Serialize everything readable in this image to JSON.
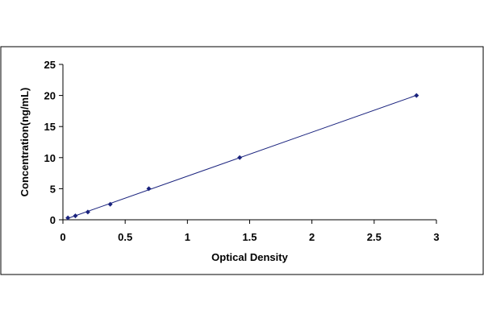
{
  "chart_data": {
    "type": "scatter",
    "xlabel": "Optical Density",
    "ylabel": "Concentration(ng/mL)",
    "xlim": [
      0,
      3
    ],
    "ylim": [
      0,
      25
    ],
    "x_ticks": [
      0,
      0.5,
      1,
      1.5,
      2,
      2.5,
      3
    ],
    "x_tick_labels": [
      "0",
      "0.5",
      "1",
      "1.5",
      "2",
      "2.5",
      "3"
    ],
    "y_ticks": [
      0,
      5,
      10,
      15,
      20,
      25
    ],
    "y_tick_labels": [
      "0",
      "5",
      "10",
      "15",
      "20",
      "25"
    ],
    "grid": false,
    "legend": "none",
    "series": [
      {
        "x": [
          0.04,
          0.1,
          0.2,
          0.38,
          0.69,
          1.42,
          2.84
        ],
        "y": [
          0.313,
          0.625,
          1.25,
          2.5,
          5,
          10,
          20
        ],
        "marker": "diamond",
        "line": "linear-fit"
      }
    ],
    "colors": {
      "marker": "#1a237e",
      "line": "#1a237e",
      "axis": "#000000",
      "frame": "#000000"
    }
  }
}
